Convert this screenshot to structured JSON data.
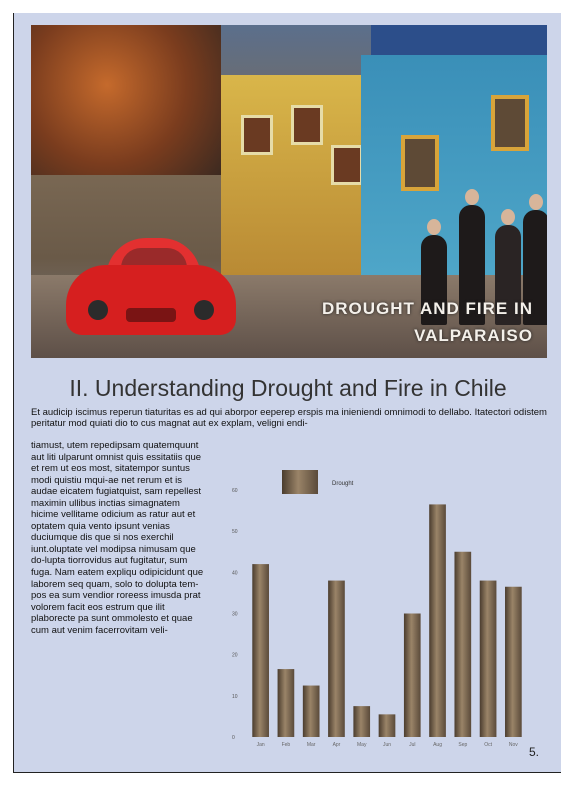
{
  "hero": {
    "caption_line1": "DROUGHT AND FIRE IN",
    "caption_line2": "VALPARAISO"
  },
  "section": {
    "heading": "II. Understanding Drought and Fire in Chile",
    "lead": "Et audicip iscimus reperun tiaturitas es ad qui aborpor eeperep erspis ma inieniendi omnimodi to dellabo. Itatectori odistem peritatur mod quiati dio to cus magnat aut ex explam, veligni endi-",
    "column": "tiamust, utem repedipsam quatemquunt aut liti ulparunt omnist quis essitatiis que et rem ut eos most, sitatempor suntus modi quistiu mqui-ae net rerum et is audae eicatem fugiatquist, sam repellest maximin ullibus inctias simagnatem hicime vellitame odicium as ratur aut et optatem quia vento ipsunt venias duciumque dis que si nos exerchil iunt.oluptate vel modipsa nimusam que do-lupta tiorrovidus aut fugitatur, sum fuga. Nam eatem expliqu odipicidunt que laborem seq quam, solo to dolupta tem-pos ea sum vendior roreess imusda prat volorem facit eos estrum que ilit plaborecte pa sunt ommolesto et quae cum aut venim facerrovitam veli-"
  },
  "chart_data": {
    "type": "bar",
    "legend": {
      "label": "Drought",
      "placement": "top-left"
    },
    "categories": [
      "Jan",
      "Feb",
      "Mar",
      "Apr",
      "May",
      "Jun",
      "Jul",
      "Aug",
      "Sep",
      "Oct",
      "Nov"
    ],
    "values": [
      42,
      16.5,
      12.5,
      38,
      7.5,
      5.5,
      30,
      56.5,
      45,
      38,
      36.5
    ],
    "ylim": [
      0,
      60
    ],
    "yticks": [
      0,
      10,
      20,
      30,
      40,
      50,
      60
    ],
    "grid": false,
    "bar_color": "#7a6650"
  },
  "page_number": "5."
}
